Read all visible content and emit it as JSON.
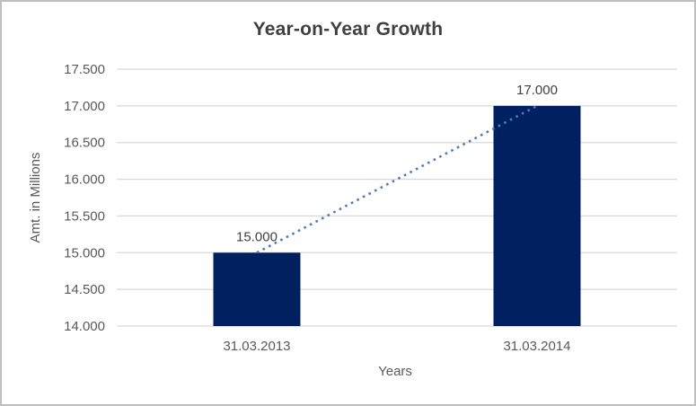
{
  "chart_data": {
    "type": "bar",
    "title": "Year-on-Year Growth",
    "xlabel": "Years",
    "ylabel": "Amt. in Millions",
    "categories": [
      "31.03.2013",
      "31.03.2014"
    ],
    "values": [
      15000,
      17000
    ],
    "data_labels": [
      "15.000",
      "17.000"
    ],
    "y_ticks": [
      {
        "value": 14000,
        "label": "14.000"
      },
      {
        "value": 14500,
        "label": "14.500"
      },
      {
        "value": 15000,
        "label": "15.000"
      },
      {
        "value": 15500,
        "label": "15.500"
      },
      {
        "value": 16000,
        "label": "16.000"
      },
      {
        "value": 16500,
        "label": "16.500"
      },
      {
        "value": 17000,
        "label": "17.000"
      },
      {
        "value": 17500,
        "label": "17.500"
      }
    ],
    "ylim": [
      14000,
      17500
    ],
    "grid": true,
    "legend": "none",
    "trendline": {
      "type": "linear",
      "style": "dotted",
      "points": [
        15000,
        17000
      ]
    }
  },
  "colors": {
    "bar": "#002060",
    "trendline": "#4a7ebb",
    "gridline": "#d9d9d9",
    "title_text": "#404040",
    "axis_text": "#595959",
    "data_label_text": "#404040",
    "frame_border": "#bfbfbf",
    "background": "#ffffff"
  }
}
